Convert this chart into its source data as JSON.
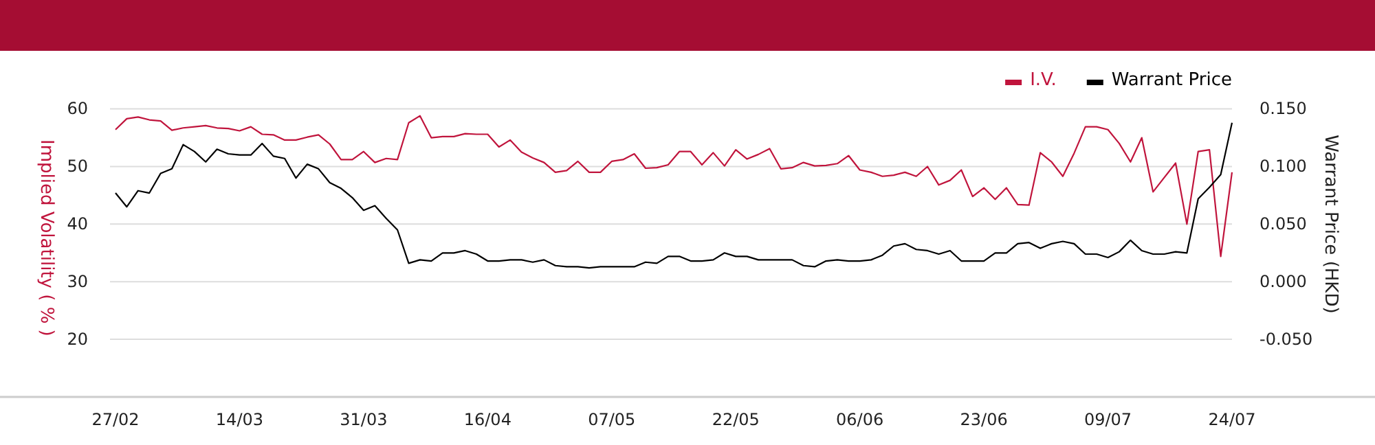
{
  "chart_data": {
    "type": "line",
    "ylabel": "Implied Volatility ( % )",
    "y2label": "Warrant Price (HKD)",
    "categories": [
      "27/02",
      null,
      null,
      null,
      null,
      null,
      null,
      null,
      null,
      null,
      null,
      "14/03",
      null,
      null,
      null,
      null,
      null,
      null,
      null,
      null,
      null,
      null,
      "31/03",
      null,
      null,
      null,
      null,
      null,
      null,
      null,
      null,
      null,
      null,
      "16/04",
      null,
      null,
      null,
      null,
      null,
      null,
      null,
      null,
      null,
      null,
      "07/05",
      null,
      null,
      null,
      null,
      null,
      null,
      null,
      null,
      null,
      null,
      "22/05",
      null,
      null,
      null,
      null,
      null,
      null,
      null,
      null,
      null,
      null,
      "06/06",
      null,
      null,
      null,
      null,
      null,
      null,
      null,
      null,
      null,
      null,
      "23/06",
      null,
      null,
      null,
      null,
      null,
      null,
      null,
      null,
      null,
      null,
      "09/07",
      null,
      null,
      null,
      null,
      null,
      null,
      null,
      null,
      null,
      null,
      "24/07"
    ],
    "series": [
      {
        "name": "I.V.",
        "color": "#c0143c",
        "values": [
          56.4,
          58.3,
          58.6,
          58.1,
          57.9,
          56.3,
          56.7,
          56.9,
          57.1,
          56.7,
          56.6,
          56.2,
          56.9,
          55.6,
          55.5,
          54.6,
          54.6,
          55.1,
          55.5,
          53.9,
          51.2,
          51.2,
          52.6,
          50.7,
          51.4,
          51.2,
          57.6,
          58.8,
          55.0,
          55.2,
          55.2,
          55.7,
          55.6,
          55.6,
          53.4,
          54.6,
          52.5,
          51.5,
          50.7,
          49.0,
          49.3,
          50.9,
          49.0,
          49.0,
          50.9,
          51.2,
          52.2,
          49.7,
          49.8,
          50.3,
          52.6,
          52.6,
          50.3,
          52.4,
          50.1,
          52.9,
          51.3,
          52.1,
          53.1,
          49.6,
          49.8,
          50.7,
          50.1,
          50.2,
          50.5,
          51.9,
          49.4,
          49.0,
          48.3,
          48.5,
          49.0,
          48.3,
          50.0,
          46.8,
          47.6,
          49.4,
          44.8,
          46.3,
          44.3,
          46.3,
          43.4,
          43.3,
          52.4,
          50.8,
          48.3,
          52.3,
          56.9,
          56.9,
          56.4,
          54.0,
          50.8,
          55.0,
          45.6,
          48.1,
          50.6,
          40.0,
          52.6,
          52.9,
          34.4,
          49.0
        ]
      },
      {
        "name": "Warrant Price",
        "color": "#000000",
        "axis": "y2",
        "values": [
          0.077,
          0.065,
          0.079,
          0.077,
          0.094,
          0.098,
          0.119,
          0.113,
          0.104,
          0.115,
          0.111,
          0.11,
          0.11,
          0.12,
          0.109,
          0.107,
          0.09,
          0.102,
          0.098,
          0.086,
          0.081,
          0.073,
          0.062,
          0.066,
          0.055,
          0.045,
          0.016,
          0.019,
          0.018,
          0.025,
          0.025,
          0.027,
          0.024,
          0.018,
          0.018,
          0.019,
          0.019,
          0.017,
          0.019,
          0.014,
          0.013,
          0.013,
          0.012,
          0.013,
          0.013,
          0.013,
          0.013,
          0.017,
          0.016,
          0.022,
          0.022,
          0.018,
          0.018,
          0.019,
          0.025,
          0.022,
          0.022,
          0.019,
          0.019,
          0.019,
          0.019,
          0.014,
          0.013,
          0.018,
          0.019,
          0.018,
          0.018,
          0.019,
          0.023,
          0.031,
          0.033,
          0.028,
          0.027,
          0.024,
          0.027,
          0.018,
          0.018,
          0.018,
          0.025,
          0.025,
          0.033,
          0.034,
          0.029,
          0.033,
          0.035,
          0.033,
          0.024,
          0.024,
          0.021,
          0.026,
          0.036,
          0.027,
          0.024,
          0.024,
          0.026,
          0.025,
          0.072,
          0.082,
          0.093,
          0.138
        ]
      }
    ],
    "ylim": [
      10,
      60
    ],
    "yticks": [
      20,
      30,
      40,
      50,
      60
    ],
    "y2lim": [
      -0.1,
      0.15
    ],
    "y2ticks": [
      {
        "value": -0.05,
        "label": "-0.050"
      },
      {
        "value": 0,
        "label": "0.000"
      },
      {
        "value": 0.05,
        "label": "0.050"
      },
      {
        "value": 0.1,
        "label": "0.100"
      },
      {
        "value": 0.15,
        "label": "0.150"
      }
    ],
    "grid": "y",
    "legend": "top right",
    "marker": "none",
    "line_style": "solid"
  }
}
